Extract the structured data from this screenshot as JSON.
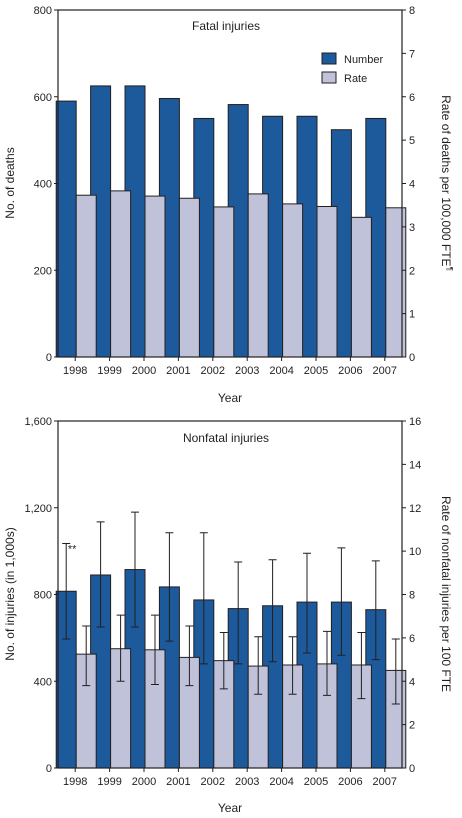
{
  "colors": {
    "number": "#1d5a9c",
    "rate": "#bfc2d9",
    "axis": "#231f20",
    "background": "#ffffff"
  },
  "chart_data": [
    {
      "type": "bar",
      "title": "Fatal injuries",
      "xlabel": "Year",
      "ylabel": "No. of deaths",
      "y2label": "Rate of deaths per 100,000 FTE",
      "y2label_marker": "¶",
      "categories": [
        "1998",
        "1999",
        "2000",
        "2001",
        "2002",
        "2003",
        "2004",
        "2005",
        "2006",
        "2007"
      ],
      "ylim": [
        0,
        800
      ],
      "yticks": [
        "0",
        "200",
        "400",
        "600",
        "800"
      ],
      "y2lim": [
        0,
        8
      ],
      "y2ticks": [
        "0",
        "1",
        "2",
        "3",
        "4",
        "5",
        "6",
        "7",
        "8"
      ],
      "legend": {
        "placement": "top-right",
        "entries": [
          "Number",
          "Rate"
        ]
      },
      "series": [
        {
          "name": "Number",
          "axis": "left",
          "values": [
            590,
            625,
            625,
            596,
            550,
            582,
            555,
            555,
            524,
            550
          ]
        },
        {
          "name": "Rate",
          "axis": "right",
          "values": [
            3.73,
            3.83,
            3.71,
            3.66,
            3.46,
            3.76,
            3.53,
            3.47,
            3.22,
            3.44
          ]
        }
      ]
    },
    {
      "type": "bar",
      "title": "Nonfatal injuries",
      "xlabel": "Year",
      "ylabel": "No. of injuries (in 1,000s)",
      "y2label": "Rate of nonfatal injuries per 100 FTE",
      "categories": [
        "1998",
        "1999",
        "2000",
        "2001",
        "2002",
        "2003",
        "2004",
        "2005",
        "2006",
        "2007"
      ],
      "ylim": [
        0,
        1600
      ],
      "yticks": [
        "0",
        "400",
        "800",
        "1,200",
        "1,600"
      ],
      "y2lim": [
        0,
        16
      ],
      "y2ticks": [
        "0",
        "2",
        "4",
        "6",
        "8",
        "10",
        "12",
        "14",
        "16"
      ],
      "annotation": {
        "text": "**",
        "category": "1998"
      },
      "series": [
        {
          "name": "Number",
          "axis": "left",
          "values": [
            815,
            890,
            915,
            835,
            775,
            735,
            748,
            765,
            765,
            730
          ],
          "error_low": [
            595,
            650,
            650,
            585,
            480,
            480,
            490,
            530,
            520,
            500
          ],
          "error_high": [
            1035,
            1135,
            1180,
            1085,
            1085,
            950,
            960,
            990,
            1015,
            955
          ]
        },
        {
          "name": "Rate",
          "axis": "right",
          "values": [
            5.25,
            5.5,
            5.45,
            5.1,
            4.95,
            4.7,
            4.75,
            4.8,
            4.75,
            4.5
          ],
          "error_low": [
            3.8,
            4.0,
            3.85,
            3.8,
            3.65,
            3.4,
            3.4,
            3.35,
            3.2,
            2.95
          ],
          "error_high": [
            6.55,
            7.05,
            7.05,
            6.55,
            6.25,
            6.05,
            6.05,
            6.3,
            6.25,
            5.95
          ]
        }
      ]
    }
  ]
}
